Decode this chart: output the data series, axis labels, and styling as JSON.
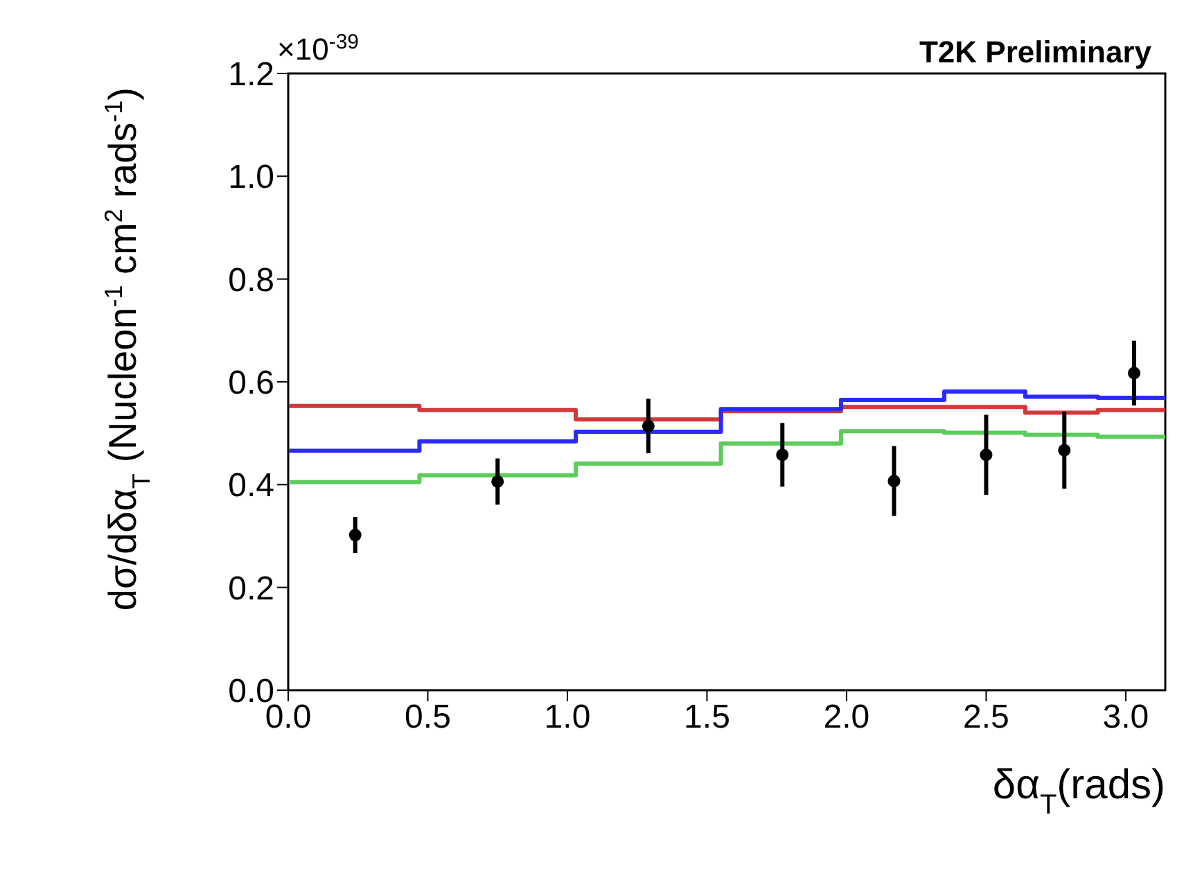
{
  "chart_data": {
    "type": "step",
    "xlabel": "δα$_{T}$(rads)",
    "ylabel": "dσ/dδα$_{T}$ (Nucleon$^{-1}$ cm$^{2}$ rads$^{-1}$)",
    "annotations": [
      "×10$^{-39}$",
      "T2K Preliminary"
    ],
    "xlim": [
      0,
      3.1416
    ],
    "xticks": [
      {
        "value": 0,
        "label": "0.0"
      },
      0.5,
      {
        "value": 1,
        "label": "1.0"
      },
      1.5,
      {
        "value": 2,
        "label": "2.0"
      },
      2.5,
      {
        "value": 3,
        "label": "3.0"
      }
    ],
    "ylim": [
      0,
      1.2
    ],
    "yticks": [
      {
        "value": 0,
        "label": "0.0"
      },
      0.2,
      0.4,
      0.6,
      0.8,
      {
        "value": 1,
        "label": "1.0"
      },
      1.2
    ],
    "grid": false,
    "series": [
      {
        "color": "#d03a3a",
        "x": [
          0,
          0.47,
          1.03,
          1.55,
          1.98,
          2.35,
          2.64,
          2.9,
          3.1416
        ],
        "values": [
          0.553,
          0.545,
          0.527,
          0.543,
          0.551,
          0.551,
          0.54,
          0.545,
          0.545
        ]
      },
      {
        "color": "#2a2aff",
        "x": [
          0,
          0.47,
          1.03,
          1.55,
          1.98,
          2.35,
          2.64,
          2.9,
          3.1416
        ],
        "values": [
          0.466,
          0.484,
          0.503,
          0.547,
          0.565,
          0.581,
          0.571,
          0.569,
          0.569
        ]
      },
      {
        "color": "#5ccc5c",
        "x": [
          0,
          0.47,
          1.03,
          1.55,
          1.98,
          2.35,
          2.64,
          2.9,
          3.1416
        ],
        "values": [
          0.405,
          0.418,
          0.441,
          0.48,
          0.504,
          0.501,
          0.497,
          0.493,
          0.493
        ]
      },
      {
        "type": "scatter",
        "color": "#000000",
        "marker": "circle",
        "x": [
          0.24,
          0.75,
          1.29,
          1.77,
          2.17,
          2.5,
          2.78,
          3.03
        ],
        "values": [
          0.302,
          0.406,
          0.514,
          0.458,
          0.407,
          0.458,
          0.467,
          0.617
        ],
        "errors": [
          0.035,
          0.045,
          0.053,
          0.062,
          0.068,
          0.078,
          0.075,
          0.063
        ]
      }
    ]
  }
}
